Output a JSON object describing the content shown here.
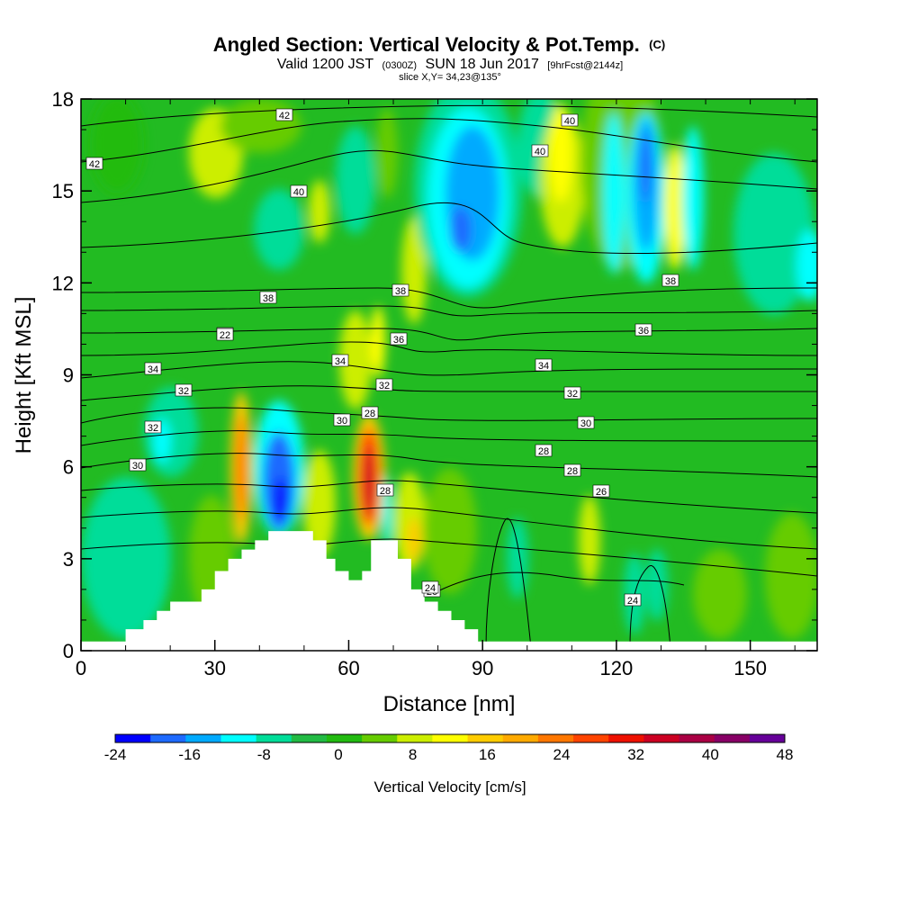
{
  "chart_data": {
    "type": "heatmap",
    "title": "Angled Section: Vertical Velocity & Pot.Temp.",
    "title_mark": "(C)",
    "subtitle": {
      "valid": "Valid 1200 JST",
      "utc": "(0300Z)",
      "date": "SUN 18 Jun 2017",
      "fcst": "[9hrFcst@2144z]"
    },
    "slice": "slice X,Y= 34,23@135°",
    "xlabel": "Distance [nm]",
    "ylabel": "Height [Kft MSL]",
    "xlim": [
      0,
      165
    ],
    "ylim": [
      0,
      18
    ],
    "xticks": [
      "0",
      "30",
      "60",
      "90",
      "120",
      "150"
    ],
    "yticks": [
      "0",
      "3",
      "6",
      "9",
      "12",
      "15",
      "18"
    ],
    "colorbar": {
      "label": "Vertical Velocity [cm/s]",
      "min": -24,
      "max": 48,
      "step": 4,
      "tick_labels": [
        "-24",
        "-16",
        "-8",
        "0",
        "8",
        "16",
        "24",
        "32",
        "40",
        "48"
      ],
      "colors": [
        "#0000ff",
        "#1e6aff",
        "#00aaff",
        "#00ffff",
        "#00dd99",
        "#22bb44",
        "#22bb11",
        "#66cc00",
        "#ccee00",
        "#ffff00",
        "#ffcc00",
        "#ffaa00",
        "#ff7700",
        "#ff4400",
        "#ee1100",
        "#cc0022",
        "#aa0044",
        "#880066",
        "#660099"
      ]
    },
    "contour_labels": [
      "42",
      "42",
      "40",
      "40",
      "40",
      "38",
      "38",
      "38",
      "36",
      "36",
      "36",
      "34",
      "34",
      "34",
      "32",
      "32",
      "32",
      "32",
      "30",
      "30",
      "30",
      "28",
      "28",
      "28",
      "28",
      "26",
      "26",
      "24",
      "24",
      "22"
    ],
    "terrain_kft": [
      [
        0,
        0.3
      ],
      [
        10,
        0.3
      ],
      [
        10,
        0.7
      ],
      [
        14,
        0.7
      ],
      [
        14,
        1.0
      ],
      [
        17,
        1.0
      ],
      [
        17,
        1.3
      ],
      [
        20,
        1.3
      ],
      [
        20,
        1.6
      ],
      [
        27,
        1.6
      ],
      [
        27,
        2.0
      ],
      [
        30,
        2.0
      ],
      [
        30,
        2.6
      ],
      [
        33,
        2.6
      ],
      [
        33,
        3.0
      ],
      [
        36,
        3.0
      ],
      [
        36,
        3.3
      ],
      [
        39,
        3.3
      ],
      [
        39,
        3.6
      ],
      [
        42,
        3.6
      ],
      [
        42,
        3.9
      ],
      [
        52,
        3.9
      ],
      [
        52,
        3.6
      ],
      [
        55,
        3.6
      ],
      [
        55,
        3.0
      ],
      [
        57,
        3.0
      ],
      [
        57,
        2.6
      ],
      [
        60,
        2.6
      ],
      [
        60,
        2.3
      ],
      [
        63,
        2.3
      ],
      [
        63,
        2.6
      ],
      [
        65,
        2.6
      ],
      [
        65,
        3.6
      ],
      [
        71,
        3.6
      ],
      [
        71,
        3.0
      ],
      [
        74,
        3.0
      ],
      [
        74,
        2.0
      ],
      [
        77,
        2.0
      ],
      [
        77,
        1.6
      ],
      [
        80,
        1.6
      ],
      [
        80,
        1.3
      ],
      [
        83,
        1.3
      ],
      [
        83,
        1.0
      ],
      [
        86,
        1.0
      ],
      [
        86,
        0.7
      ],
      [
        89,
        0.7
      ],
      [
        89,
        0.3
      ],
      [
        165,
        0.3
      ]
    ]
  }
}
